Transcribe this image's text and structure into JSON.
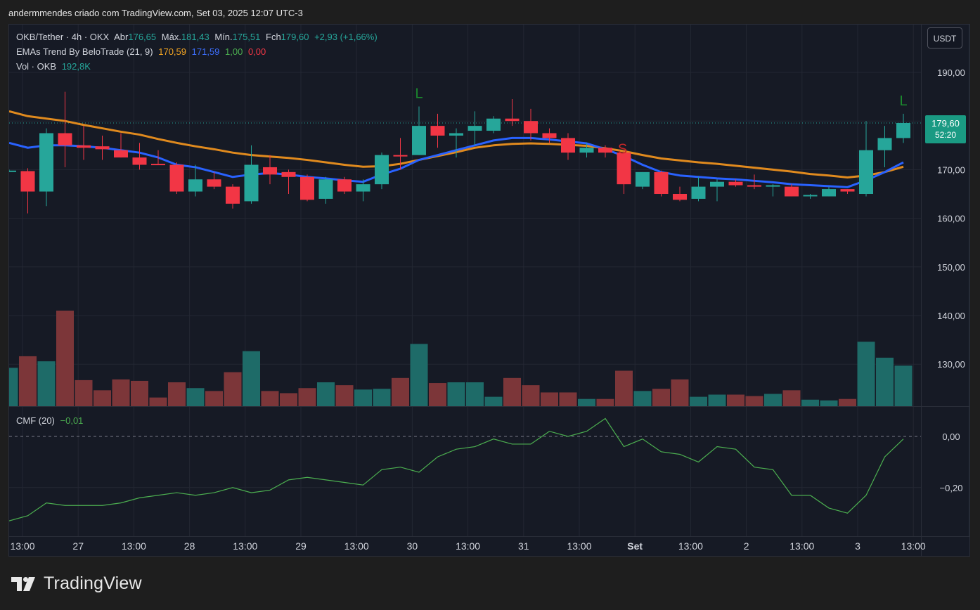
{
  "header": {
    "text": "andermmendes criado com TradingView.com, Set 03, 2025 12:07 UTC-3"
  },
  "legend": {
    "symbol": "OKB/Tether · 4h · OKX",
    "open_label": "Abr",
    "open": "176,65",
    "high_label": "Máx.",
    "high": "181,43",
    "low_label": "Mín.",
    "low": "175,51",
    "close_label": "Fch",
    "close": "179,60",
    "change": "+2,93 (+1,66%)",
    "ema_name": "EMAs Trend By BeloTrade (21, 9)",
    "ema_slow": "170,59",
    "ema_fast": "171,59",
    "sig1": "1,00",
    "sig2": "0,00",
    "vol_name": "Vol · OKB",
    "vol": "192,8K",
    "cmf_name": "CMF (20)",
    "cmf": "−0,01"
  },
  "currency_button": "USDT",
  "price_tag": {
    "price": "179,60",
    "countdown": "52:20"
  },
  "logo_text": "TradingView",
  "colors": {
    "up": "#26a69a",
    "down": "#f23645",
    "ema_fast": "#2962ff",
    "ema_slow": "#e08a1e",
    "cmf": "#4caf50",
    "signal_L": "#1b8a2e",
    "signal_S": "#c62828"
  },
  "chart_data": {
    "type": "candlestick",
    "y_range": [
      185,
      190
    ],
    "price_ticks": [
      "190,00",
      "170,00",
      "160,00",
      "150,00",
      "140,00",
      "130,00"
    ],
    "cmf_ticks": [
      "0,00",
      "−0,20"
    ],
    "x_ticks": [
      "13:00",
      "27",
      "13:00",
      "28",
      "13:00",
      "29",
      "13:00",
      "30",
      "13:00",
      "31",
      "13:00",
      "Set",
      "13:00",
      "2",
      "13:00",
      "3",
      "13:00"
    ],
    "candles": [
      {
        "o": 169.8,
        "h": 170.0,
        "l": 169.5,
        "c": 169.8
      },
      {
        "o": 169.7,
        "h": 170.3,
        "l": 161.0,
        "c": 165.5
      },
      {
        "o": 165.5,
        "h": 178.5,
        "l": 162.5,
        "c": 177.5
      },
      {
        "o": 177.5,
        "h": 186.0,
        "l": 170.5,
        "c": 175.0
      },
      {
        "o": 175.0,
        "h": 179.0,
        "l": 172.0,
        "c": 174.5
      },
      {
        "o": 174.8,
        "h": 177.0,
        "l": 172.0,
        "c": 174.2
      },
      {
        "o": 174.0,
        "h": 177.5,
        "l": 172.5,
        "c": 172.5
      },
      {
        "o": 172.5,
        "h": 175.5,
        "l": 170.0,
        "c": 171.0
      },
      {
        "o": 171.2,
        "h": 174.0,
        "l": 171.0,
        "c": 171.0
      },
      {
        "o": 171.0,
        "h": 171.5,
        "l": 165.0,
        "c": 165.5
      },
      {
        "o": 165.5,
        "h": 171.0,
        "l": 164.5,
        "c": 168.0
      },
      {
        "o": 168.0,
        "h": 169.5,
        "l": 166.0,
        "c": 166.5
      },
      {
        "o": 166.5,
        "h": 167.0,
        "l": 162.0,
        "c": 163.0
      },
      {
        "o": 163.5,
        "h": 175.0,
        "l": 163.0,
        "c": 171.0
      },
      {
        "o": 170.5,
        "h": 173.0,
        "l": 167.0,
        "c": 169.0
      },
      {
        "o": 169.5,
        "h": 170.0,
        "l": 165.0,
        "c": 168.5
      },
      {
        "o": 168.5,
        "h": 169.0,
        "l": 163.5,
        "c": 163.8
      },
      {
        "o": 164.0,
        "h": 168.5,
        "l": 163.0,
        "c": 168.0
      },
      {
        "o": 168.0,
        "h": 168.5,
        "l": 165.0,
        "c": 165.5
      },
      {
        "o": 165.5,
        "h": 168.0,
        "l": 163.5,
        "c": 167.0
      },
      {
        "o": 167.0,
        "h": 173.5,
        "l": 166.0,
        "c": 173.0
      },
      {
        "o": 173.0,
        "h": 176.5,
        "l": 170.0,
        "c": 172.8
      },
      {
        "o": 173.0,
        "h": 183.0,
        "l": 173.0,
        "c": 179.0
      },
      {
        "o": 179.0,
        "h": 181.5,
        "l": 174.5,
        "c": 177.0
      },
      {
        "o": 177.0,
        "h": 178.5,
        "l": 172.5,
        "c": 177.5
      },
      {
        "o": 178.0,
        "h": 182.0,
        "l": 175.0,
        "c": 179.0
      },
      {
        "o": 178.0,
        "h": 181.0,
        "l": 177.5,
        "c": 180.5
      },
      {
        "o": 180.5,
        "h": 184.5,
        "l": 179.0,
        "c": 180.0
      },
      {
        "o": 180.0,
        "h": 182.5,
        "l": 176.0,
        "c": 177.5
      },
      {
        "o": 177.5,
        "h": 178.5,
        "l": 175.5,
        "c": 176.5
      },
      {
        "o": 176.5,
        "h": 177.5,
        "l": 172.0,
        "c": 173.5
      },
      {
        "o": 173.5,
        "h": 175.5,
        "l": 172.5,
        "c": 174.5
      },
      {
        "o": 174.5,
        "h": 175.0,
        "l": 172.5,
        "c": 173.5
      },
      {
        "o": 173.5,
        "h": 174.0,
        "l": 165.0,
        "c": 167.0
      },
      {
        "o": 166.5,
        "h": 169.5,
        "l": 166.0,
        "c": 169.5
      },
      {
        "o": 169.5,
        "h": 169.8,
        "l": 164.5,
        "c": 165.0
      },
      {
        "o": 165.0,
        "h": 166.5,
        "l": 163.5,
        "c": 163.8
      },
      {
        "o": 164.0,
        "h": 168.5,
        "l": 163.5,
        "c": 166.5
      },
      {
        "o": 166.5,
        "h": 168.0,
        "l": 163.5,
        "c": 167.5
      },
      {
        "o": 167.5,
        "h": 168.0,
        "l": 166.5,
        "c": 166.8
      },
      {
        "o": 166.8,
        "h": 169.0,
        "l": 166.0,
        "c": 166.5
      },
      {
        "o": 166.5,
        "h": 167.0,
        "l": 164.5,
        "c": 166.8
      },
      {
        "o": 166.5,
        "h": 167.0,
        "l": 164.5,
        "c": 164.5
      },
      {
        "o": 164.5,
        "h": 165.0,
        "l": 164.0,
        "c": 164.8
      },
      {
        "o": 164.5,
        "h": 166.5,
        "l": 164.5,
        "c": 166.0
      },
      {
        "o": 166.0,
        "h": 166.0,
        "l": 165.0,
        "c": 165.5
      },
      {
        "o": 165.0,
        "h": 180.0,
        "l": 164.5,
        "c": 174.0
      },
      {
        "o": 174.0,
        "h": 179.0,
        "l": 170.5,
        "c": 176.5
      },
      {
        "o": 176.5,
        "h": 181.5,
        "l": 175.5,
        "c": 179.6
      }
    ],
    "ema_fast": [
      175.5,
      174.5,
      175,
      175,
      174.8,
      174.5,
      174,
      173.5,
      172.5,
      171,
      170.5,
      169.5,
      168.5,
      169,
      169.3,
      169,
      168.5,
      168.2,
      167.8,
      167.5,
      169,
      170.2,
      172,
      173,
      174,
      175,
      176,
      176.5,
      176.5,
      176.2,
      175.8,
      175.4,
      174.2,
      172.8,
      171,
      169.5,
      168.8,
      168.5,
      168.2,
      168,
      167.7,
      167.4,
      167,
      166.8,
      166.6,
      166.4,
      167.8,
      169.5,
      171.5
    ],
    "ema_slow": [
      182,
      181,
      180.5,
      180,
      179.2,
      178.5,
      177.8,
      177.2,
      176.3,
      175.5,
      174.8,
      174.2,
      173.5,
      173,
      172.7,
      172.4,
      172,
      171.5,
      171,
      170.6,
      170.7,
      171.2,
      172,
      172.8,
      173.6,
      174.5,
      175,
      175.3,
      175.4,
      175.3,
      175.1,
      174.9,
      174.4,
      173.8,
      173,
      172.3,
      171.9,
      171.5,
      171.2,
      170.8,
      170.4,
      170,
      169.6,
      169.1,
      168.8,
      168.4,
      168.8,
      169.5,
      170.6
    ],
    "volume": [
      53,
      69,
      62,
      132,
      36,
      22,
      37,
      35,
      12,
      33,
      25,
      21,
      47,
      76,
      21,
      18,
      25,
      33,
      29,
      23,
      24,
      39,
      86,
      32,
      33,
      33,
      13,
      39,
      29,
      19,
      19,
      10,
      10,
      49,
      21,
      24,
      37,
      13,
      16,
      16,
      14,
      17,
      22,
      9,
      8,
      10,
      89,
      67,
      56
    ],
    "cmf": [
      -0.33,
      -0.31,
      -0.26,
      -0.27,
      -0.27,
      -0.27,
      -0.26,
      -0.24,
      -0.23,
      -0.22,
      -0.23,
      -0.22,
      -0.2,
      -0.22,
      -0.21,
      -0.17,
      -0.16,
      -0.17,
      -0.18,
      -0.19,
      -0.13,
      -0.12,
      -0.14,
      -0.08,
      -0.05,
      -0.04,
      -0.01,
      -0.03,
      -0.03,
      0.02,
      0.0,
      0.02,
      0.07,
      -0.04,
      -0.01,
      -0.06,
      -0.07,
      -0.1,
      -0.04,
      -0.05,
      -0.12,
      -0.13,
      -0.23,
      -0.23,
      -0.28,
      -0.3,
      -0.23,
      -0.08,
      -0.01
    ],
    "signals": [
      {
        "index": 22,
        "label": "L"
      },
      {
        "index": 33,
        "label": "S"
      },
      {
        "index": 48,
        "label": "L"
      }
    ]
  }
}
